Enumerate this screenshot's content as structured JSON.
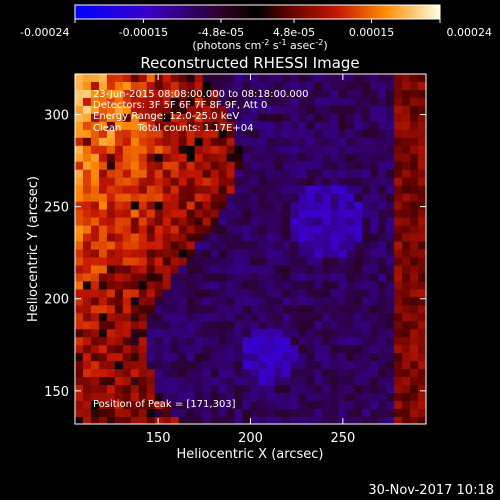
{
  "chart_data": {
    "type": "heatmap",
    "title": "Reconstructed RHESSI Image",
    "xlabel": "Heliocentric X (arcsec)",
    "ylabel": "Heliocentric Y (arcsec)",
    "xlim": [
      105,
      295
    ],
    "ylim": [
      132,
      322
    ],
    "x_ticks": [
      150,
      200,
      250
    ],
    "y_ticks": [
      150,
      200,
      250,
      300
    ],
    "colorbar": {
      "min": -0.00024,
      "max": 0.00024,
      "tick_labels": [
        "-0.00024",
        "-0.00015",
        "-4.8e-05",
        "4.8e-05",
        "0.00015",
        "0.00024"
      ],
      "tick_values": [
        -0.00024,
        -0.00015,
        -4.8e-05,
        4.8e-05,
        0.00015,
        0.00024
      ],
      "unit_label": "(photons cm",
      "unit_exp1": "-2",
      "unit_mid": " s",
      "unit_exp2": "-1",
      "unit_end": " asec",
      "unit_exp3": "-2",
      "unit_close": ")"
    },
    "annotations": [
      "23-Jun-2015 08:08:00.000 to 08:18:00.000",
      "Detectors: 3F 5F 6F 7F 8F 9F, Att 0",
      "Energy Range: 12.0-25.0 keV",
      "Clean     Total counts: 1.17E+04"
    ],
    "peak_label": "Position of Peak = [171,303]",
    "peak": [
      171,
      303
    ],
    "grid": false
  },
  "footer": {
    "date": "30-Nov-2017 10:18"
  }
}
